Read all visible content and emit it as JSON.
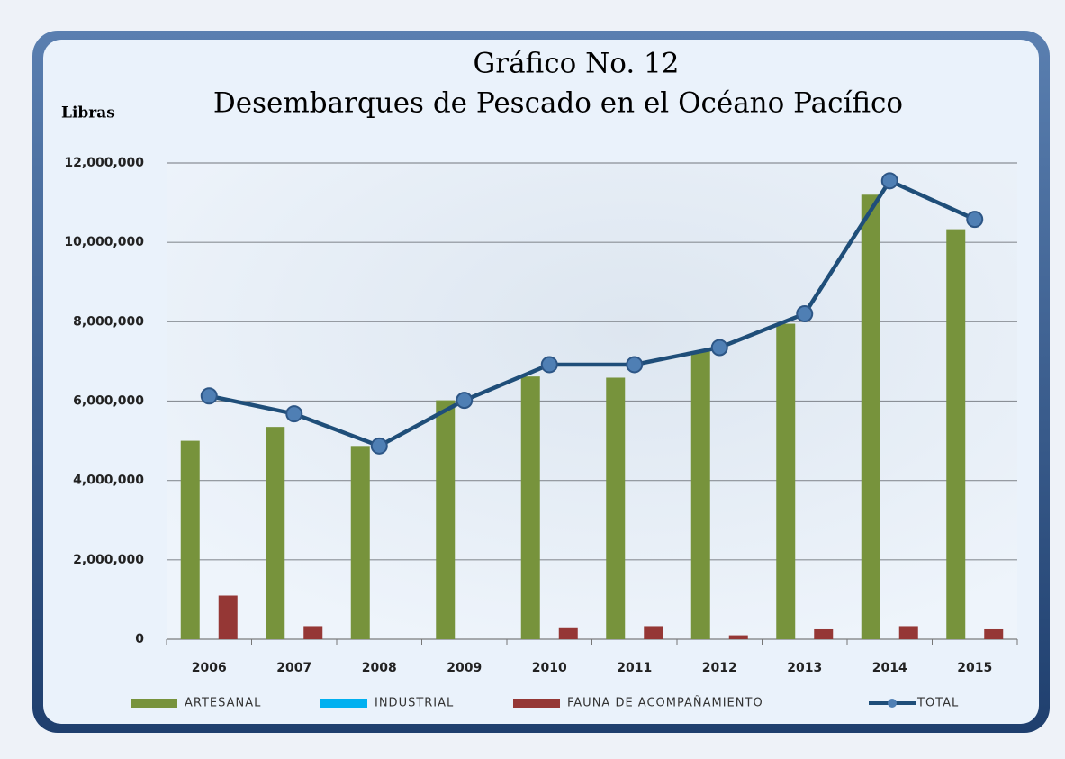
{
  "chart_data": {
    "type": "bar_line",
    "title": "Gráfico No. 12",
    "subtitle": "Desembarques de Pescado en el Océano Pacífico",
    "y_label": "Libras",
    "categories": [
      "2006",
      "2007",
      "2008",
      "2009",
      "2010",
      "2011",
      "2012",
      "2013",
      "2014",
      "2015"
    ],
    "series": [
      {
        "name": "ARTESANAL",
        "type": "bar",
        "color": "#77933c",
        "values": [
          5000000,
          5350000,
          4870000,
          6020000,
          6620000,
          6590000,
          7250000,
          7950000,
          11200000,
          10330000
        ]
      },
      {
        "name": "INDUSTRIAL",
        "type": "bar",
        "color": "#00b0f0",
        "values": [
          0,
          0,
          0,
          0,
          0,
          0,
          0,
          0,
          0,
          0
        ]
      },
      {
        "name": "FAUNA DE ACOMPAÑAMIENTO",
        "type": "bar",
        "color": "#953735",
        "values": [
          1100000,
          330000,
          0,
          0,
          300000,
          330000,
          100000,
          250000,
          330000,
          250000
        ]
      },
      {
        "name": "TOTAL",
        "type": "line",
        "color": "#1f4e79",
        "values": [
          6130000,
          5680000,
          4870000,
          6020000,
          6920000,
          6920000,
          7350000,
          8200000,
          11550000,
          10580000
        ]
      }
    ],
    "ylim": [
      0,
      12000000
    ],
    "yticks": [
      {
        "value": 0,
        "label": "0"
      },
      {
        "value": 2000000,
        "label": "2,000,000"
      },
      {
        "value": 4000000,
        "label": "4,000,000"
      },
      {
        "value": 6000000,
        "label": "6,000,000"
      },
      {
        "value": 8000000,
        "label": "8,000,000"
      },
      {
        "value": 10000000,
        "label": "10,000,000"
      },
      {
        "value": 12000000,
        "label": "12,000,000"
      }
    ],
    "grid": true
  }
}
